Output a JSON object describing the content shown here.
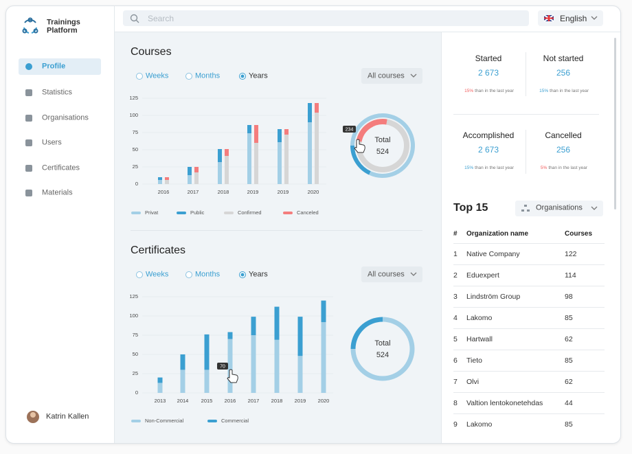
{
  "sidebar": {
    "brand": [
      "Trainings",
      "Platform"
    ],
    "nav": [
      "Profile",
      "Statistics",
      "Organisations",
      "Users",
      "Certificates",
      "Materials"
    ],
    "active": 0,
    "user": "Katrin Kallen"
  },
  "header": {
    "search": "Search",
    "language": "English"
  },
  "courses": {
    "title": "Courses",
    "periods": [
      "Weeks",
      "Months",
      "Years"
    ],
    "selected_period": 2,
    "filter": "All courses",
    "chart": {
      "type": "bar",
      "categories": [
        "2016",
        "2017",
        "2018",
        "2019",
        "2019",
        "2020"
      ],
      "series": [
        {
          "name": "Privat",
          "color": "#a3cfe6",
          "stack": 0,
          "values": [
            6,
            13,
            32,
            74,
            61,
            90
          ]
        },
        {
          "name": "Public",
          "color": "#3b9fd1",
          "stack": 0,
          "values": [
            4,
            12,
            19,
            12,
            19,
            28
          ]
        },
        {
          "name": "Confirmed",
          "color": "#d6d6d6",
          "stack": 1,
          "values": [
            6,
            17,
            41,
            60,
            72,
            104
          ]
        },
        {
          "name": "Canceled",
          "color": "#f47d7d",
          "stack": 1,
          "values": [
            4,
            8,
            10,
            26,
            8,
            14
          ]
        }
      ],
      "ylim": [
        0,
        125
      ],
      "yticks": [
        0,
        25,
        50,
        75,
        100,
        125
      ],
      "grid": true
    },
    "donut": {
      "type": "donut",
      "label": "Total",
      "total": 524,
      "tooltip": 234,
      "rings": [
        {
          "values": [
            95,
            429
          ],
          "colors": [
            "#3b9fd1",
            "#a3cfe6"
          ]
        },
        {
          "values": [
            131,
            393
          ],
          "colors": [
            "#f47d7d",
            "#d6d6d6"
          ]
        }
      ]
    }
  },
  "certificates": {
    "title": "Certificates",
    "periods": [
      "Weeks",
      "Months",
      "Years"
    ],
    "selected_period": 2,
    "filter": "All courses",
    "chart": {
      "type": "bar",
      "categories": [
        "2013",
        "2014",
        "2015",
        "2016",
        "2017",
        "2018",
        "2019",
        "2020"
      ],
      "series": [
        {
          "name": "Non-Commercial",
          "color": "#a3cfe6",
          "stack": 0,
          "values": [
            13,
            30,
            30,
            70,
            75,
            69,
            48,
            92
          ]
        },
        {
          "name": "Commercial",
          "color": "#3b9fd1",
          "stack": 0,
          "values": [
            7,
            20,
            46,
            9,
            24,
            43,
            51,
            28
          ]
        }
      ],
      "ylim": [
        0,
        125
      ],
      "yticks": [
        0,
        25,
        50,
        75,
        100,
        125
      ],
      "grid": true,
      "tooltip": {
        "series": 0,
        "index": 3
      }
    },
    "donut": {
      "type": "donut",
      "label": "Total",
      "total": 524,
      "rings": [
        {
          "values": [
            131,
            393
          ],
          "colors": [
            "#3b9fd1",
            "#a3cfe6"
          ]
        }
      ]
    }
  },
  "stats": [
    {
      "label": "Started",
      "value": "2 673",
      "change": "15%",
      "trend": "down",
      "note": "than in the last year"
    },
    {
      "label": "Not started",
      "value": "256",
      "change": "15%",
      "trend": "up",
      "note": "than in the last year"
    },
    {
      "label": "Accomplished",
      "value": "2 673",
      "change": "15%",
      "trend": "up",
      "note": "than in the last year"
    },
    {
      "label": "Cancelled",
      "value": "256",
      "change": "5%",
      "trend": "down",
      "note": "than in the last year"
    }
  ],
  "top": {
    "title": "Top 15",
    "filter": "Organisations",
    "columns": [
      "#",
      "Organization name",
      "Courses"
    ],
    "rows": [
      [
        1,
        "Native Company",
        122
      ],
      [
        2,
        "Eduexpert",
        114
      ],
      [
        3,
        "Lindström Group",
        98
      ],
      [
        4,
        "Lakomo",
        85
      ],
      [
        5,
        "Hartwall",
        62
      ],
      [
        6,
        "Tieto",
        85
      ],
      [
        7,
        "Olvi",
        62
      ],
      [
        8,
        "Valtion lentokonetehdas",
        44
      ],
      [
        9,
        "Lakomo",
        85
      ]
    ]
  }
}
